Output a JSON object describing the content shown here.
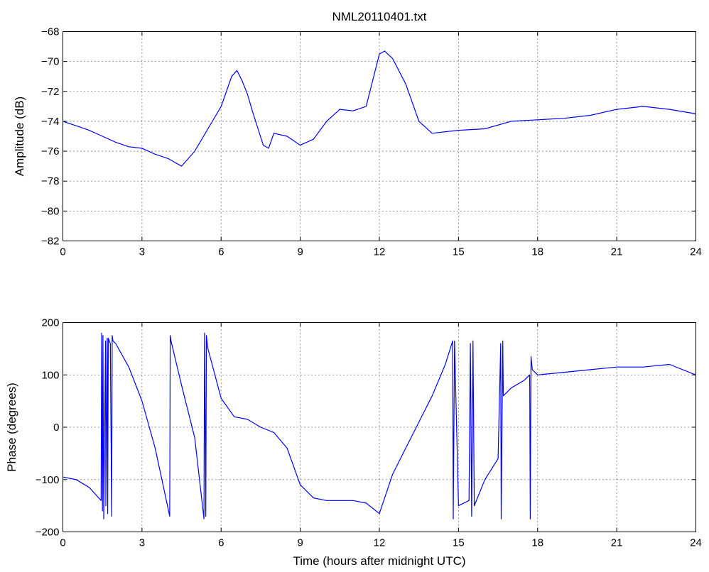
{
  "chart_data": [
    {
      "type": "line",
      "title": "NML20110401.txt",
      "xlabel": "",
      "ylabel": "Amplitude (dB)",
      "xlim": [
        0,
        24
      ],
      "ylim": [
        -82,
        -68
      ],
      "xticks": [
        0,
        3,
        6,
        9,
        12,
        15,
        18,
        21,
        24
      ],
      "yticks": [
        -82,
        -80,
        -78,
        -76,
        -74,
        -72,
        -70,
        -68
      ],
      "xtick_labels": [
        "0",
        "3",
        "6",
        "9",
        "12",
        "15",
        "18",
        "21",
        "24"
      ],
      "ytick_labels": [
        "−82",
        "−80",
        "−78",
        "−76",
        "−74",
        "−72",
        "−70",
        "−68"
      ],
      "grid": true,
      "color": "#0000ff",
      "series": [
        {
          "x": [
            0,
            0.5,
            1,
            1.5,
            2,
            2.5,
            3,
            3.5,
            4,
            4.5,
            5,
            5.5,
            6,
            6.2,
            6.4,
            6.6,
            6.8,
            7,
            7.2,
            7.4,
            7.6,
            7.8,
            8,
            8.5,
            9,
            9.5,
            10,
            10.5,
            11,
            11.5,
            12,
            12.2,
            12.5,
            13,
            13.5,
            14,
            15,
            16,
            17,
            18,
            19,
            20,
            21,
            22,
            23,
            24
          ],
          "y": [
            -74,
            -74.3,
            -74.6,
            -75,
            -75.4,
            -75.7,
            -75.8,
            -76.2,
            -76.5,
            -77,
            -76,
            -74.5,
            -73,
            -72,
            -71,
            -70.6,
            -71.3,
            -72.2,
            -73.4,
            -74.5,
            -75.6,
            -75.8,
            -74.8,
            -75,
            -75.6,
            -75.2,
            -74,
            -73.2,
            -73.3,
            -73,
            -69.5,
            -69.3,
            -69.8,
            -71.5,
            -74,
            -74.8,
            -74.6,
            -74.5,
            -74,
            -73.9,
            -73.8,
            -73.6,
            -73.2,
            -73,
            -73.2,
            -73.5
          ]
        }
      ]
    },
    {
      "type": "line",
      "title": "",
      "xlabel": "Time (hours after midnight UTC)",
      "ylabel": "Phase (degrees)",
      "xlim": [
        0,
        24
      ],
      "ylim": [
        -200,
        200
      ],
      "xticks": [
        0,
        3,
        6,
        9,
        12,
        15,
        18,
        21,
        24
      ],
      "yticks": [
        -200,
        -100,
        0,
        100,
        200
      ],
      "xtick_labels": [
        "0",
        "3",
        "6",
        "9",
        "12",
        "15",
        "18",
        "21",
        "24"
      ],
      "ytick_labels": [
        "−200",
        "−100",
        "0",
        "100",
        "200"
      ],
      "grid": true,
      "color": "#0000ff",
      "series": [
        {
          "x": [
            0,
            0.5,
            1,
            1.45,
            1.47,
            1.5,
            1.52,
            1.55,
            1.62,
            1.63,
            1.68,
            1.7,
            1.72,
            1.8,
            1.85,
            1.87,
            1.9,
            2.0,
            2.5,
            3,
            3.5,
            4.05,
            4.07,
            4.1,
            4.5,
            5,
            5.35,
            5.37,
            5.42,
            5.44,
            5.5,
            6,
            6.5,
            7,
            7.5,
            8,
            8.5,
            9,
            9.5,
            10,
            10.5,
            11,
            11.5,
            12,
            12.5,
            13,
            13.5,
            14,
            14.5,
            14.78,
            14.8,
            14.85,
            15,
            15.4,
            15.45,
            15.5,
            15.55,
            15.6,
            16,
            16.5,
            16.6,
            16.62,
            16.68,
            16.7,
            17,
            17.5,
            17.7,
            17.72,
            17.75,
            17.8,
            18,
            19,
            20,
            21,
            22,
            23,
            24
          ],
          "y": [
            -95,
            -100,
            -115,
            -140,
            180,
            -160,
            175,
            -175,
            165,
            -150,
            170,
            -165,
            170,
            160,
            -170,
            175,
            165,
            160,
            115,
            50,
            -40,
            -170,
            175,
            165,
            80,
            -20,
            -175,
            180,
            -170,
            175,
            150,
            55,
            20,
            15,
            0,
            -10,
            -40,
            -110,
            -135,
            -140,
            -140,
            -140,
            -145,
            -165,
            -90,
            -40,
            10,
            60,
            120,
            165,
            -175,
            165,
            -150,
            -140,
            160,
            -170,
            165,
            -150,
            -100,
            -60,
            160,
            -175,
            165,
            60,
            75,
            90,
            100,
            -175,
            135,
            110,
            100,
            105,
            110,
            115,
            115,
            120,
            100
          ]
        }
      ]
    }
  ]
}
